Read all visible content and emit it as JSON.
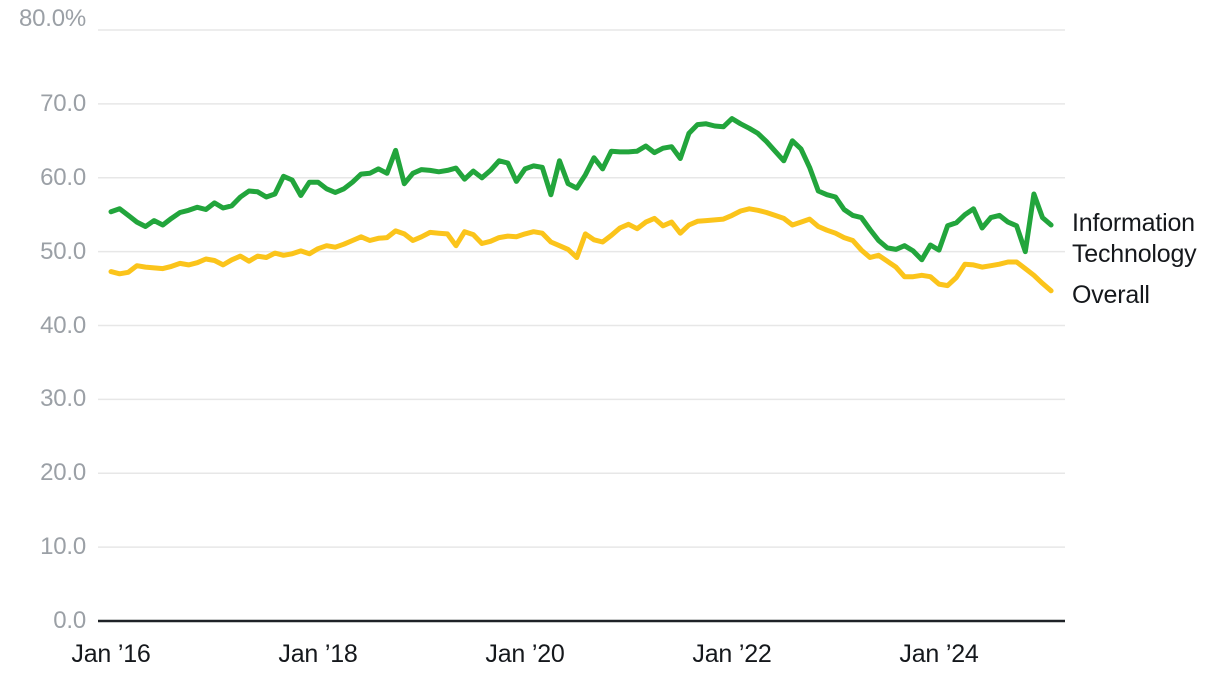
{
  "chart_data": {
    "type": "line",
    "title": "",
    "x_start": "2016-01",
    "x_end": "2025-02",
    "x_interval": "month",
    "x_tick_labels": [
      {
        "label": "Jan ’16",
        "month_index": 0
      },
      {
        "label": "Jan ’18",
        "month_index": 24
      },
      {
        "label": "Jan ’20",
        "month_index": 48
      },
      {
        "label": "Jan ’22",
        "month_index": 72
      },
      {
        "label": "Jan ’24",
        "month_index": 96
      }
    ],
    "y_ticks": [
      {
        "value": 80,
        "label": "80.0%"
      },
      {
        "value": 70,
        "label": "70.0"
      },
      {
        "value": 60,
        "label": "60.0"
      },
      {
        "value": 50,
        "label": "50.0"
      },
      {
        "value": 40,
        "label": "40.0"
      },
      {
        "value": 30,
        "label": "30.0"
      },
      {
        "value": 20,
        "label": "20.0"
      },
      {
        "value": 10,
        "label": "10.0"
      },
      {
        "value": 0,
        "label": "0.0"
      }
    ],
    "ylim": [
      0,
      80
    ],
    "grid": "horizontal",
    "legend_position": "right-of-line-ends",
    "colors": {
      "information_technology": "#22A53C",
      "overall": "#FBC41B",
      "gridline": "#E7E7E7",
      "axis": "#1F2227",
      "y_tick_text": "#9BA0A6",
      "x_tick_text": "#15181C",
      "label_text": "#15181C",
      "background": "#FFFFFF"
    },
    "series": [
      {
        "name": "Information Technology",
        "label_lines": [
          "Information",
          "Technology"
        ],
        "color": "#22A53C",
        "values": [
          55.4,
          55.8,
          54.9,
          54.0,
          53.4,
          54.2,
          53.6,
          54.5,
          55.3,
          55.6,
          56.0,
          55.7,
          56.6,
          55.9,
          56.2,
          57.4,
          58.2,
          58.1,
          57.4,
          57.8,
          60.2,
          59.7,
          57.6,
          59.4,
          59.4,
          58.5,
          58.0,
          58.5,
          59.4,
          60.5,
          60.6,
          61.2,
          60.6,
          63.7,
          59.2,
          60.6,
          61.1,
          61.0,
          60.8,
          61.0,
          61.3,
          59.8,
          60.9,
          60.0,
          61.0,
          62.3,
          62.0,
          59.5,
          61.2,
          61.6,
          61.4,
          57.7,
          62.3,
          59.2,
          58.6,
          60.4,
          62.7,
          61.2,
          63.6,
          63.5,
          63.5,
          63.6,
          64.3,
          63.4,
          64.0,
          64.2,
          62.6,
          66.0,
          67.2,
          67.3,
          67.0,
          66.9,
          68.0,
          67.3,
          66.7,
          66.0,
          64.9,
          63.6,
          62.3,
          65.0,
          63.9,
          61.4,
          58.2,
          57.7,
          57.4,
          55.7,
          54.9,
          54.6,
          53.0,
          51.5,
          50.5,
          50.3,
          50.8,
          50.1,
          48.9,
          50.9,
          50.2,
          53.5,
          53.9,
          55.0,
          55.8,
          53.2,
          54.6,
          54.9,
          54.0,
          53.5,
          50.0,
          57.8,
          54.6,
          53.6
        ]
      },
      {
        "name": "Overall",
        "label_lines": [
          "Overall"
        ],
        "color": "#FBC41B",
        "values": [
          47.3,
          47.0,
          47.2,
          48.1,
          47.9,
          47.8,
          47.7,
          48.0,
          48.4,
          48.2,
          48.5,
          49.0,
          48.8,
          48.2,
          48.9,
          49.4,
          48.7,
          49.4,
          49.2,
          49.8,
          49.5,
          49.7,
          50.1,
          49.7,
          50.4,
          50.8,
          50.6,
          51.0,
          51.5,
          52.0,
          51.5,
          51.8,
          51.9,
          52.8,
          52.4,
          51.5,
          52.0,
          52.6,
          52.5,
          52.4,
          50.8,
          52.7,
          52.3,
          51.1,
          51.4,
          51.9,
          52.1,
          52.0,
          52.4,
          52.7,
          52.5,
          51.3,
          50.8,
          50.3,
          49.2,
          52.4,
          51.6,
          51.3,
          52.2,
          53.2,
          53.7,
          53.1,
          54.0,
          54.5,
          53.5,
          54.0,
          52.5,
          53.6,
          54.1,
          54.2,
          54.3,
          54.4,
          54.9,
          55.5,
          55.8,
          55.6,
          55.3,
          54.9,
          54.5,
          53.6,
          54.0,
          54.4,
          53.4,
          52.9,
          52.5,
          51.9,
          51.5,
          50.2,
          49.2,
          49.5,
          48.7,
          47.9,
          46.6,
          46.6,
          46.8,
          46.6,
          45.6,
          45.4,
          46.5,
          48.3,
          48.2,
          47.9,
          48.1,
          48.3,
          48.6,
          48.6,
          47.7,
          46.8,
          45.7,
          44.7
        ]
      }
    ]
  }
}
